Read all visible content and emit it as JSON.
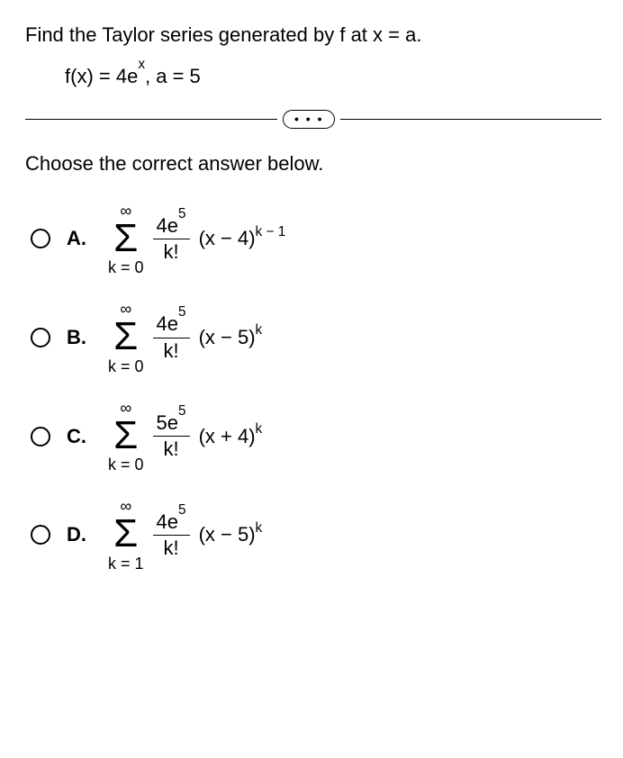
{
  "question": {
    "line1": "Find the Taylor series generated by f at x = a.",
    "func_html": "f(x) = 4e<sup>x</sup>, a = 5"
  },
  "dots": "• • •",
  "prompt": "Choose the correct answer below.",
  "choices": [
    {
      "letter": "A.",
      "upper": "∞",
      "lower": "k = 0",
      "num_html": "4e<sup>5</sup>",
      "den": "k!",
      "term_html": "(x − 4)<sup>k − 1</sup>"
    },
    {
      "letter": "B.",
      "upper": "∞",
      "lower": "k = 0",
      "num_html": "4e<sup>5</sup>",
      "den": "k!",
      "term_html": "(x − 5)<sup>k</sup>"
    },
    {
      "letter": "C.",
      "upper": "∞",
      "lower": "k = 0",
      "num_html": "5e<sup>5</sup>",
      "den": "k!",
      "term_html": "(x + 4)<sup>k</sup>"
    },
    {
      "letter": "D.",
      "upper": "∞",
      "lower": "k = 1",
      "num_html": "4e<sup>5</sup>",
      "den": "k!",
      "term_html": "(x − 5)<sup>k</sup>"
    }
  ]
}
